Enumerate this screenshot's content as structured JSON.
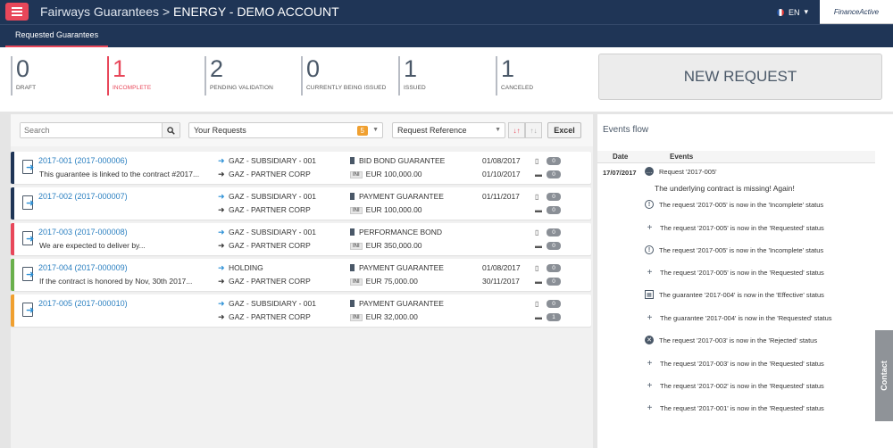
{
  "header": {
    "app_name": "Fairways Guarantees",
    "separator": ">",
    "account": "ENERGY - DEMO ACCOUNT",
    "language": "EN",
    "logo_text": "FinanceActive"
  },
  "tabs": [
    {
      "label": "Requested Guarantees"
    }
  ],
  "stats": [
    {
      "count": "0",
      "label": "DRAFT"
    },
    {
      "count": "1",
      "label": "INCOMPLETE"
    },
    {
      "count": "2",
      "label": "PENDING VALIDATION"
    },
    {
      "count": "0",
      "label": "CURRENTLY BEING ISSUED"
    },
    {
      "count": "1",
      "label": "ISSUED"
    },
    {
      "count": "1",
      "label": "CANCELED"
    }
  ],
  "new_request_label": "NEW REQUEST",
  "toolbar": {
    "search_placeholder": "Search",
    "filter_value": "Your Requests",
    "filter_count": "5",
    "sort_value": "Request Reference",
    "excel_label": "Excel"
  },
  "colors": {
    "navy": "#1f3556",
    "red": "#e8475a",
    "green": "#6ab04c",
    "orange": "#f0a030"
  },
  "requests": [
    {
      "ref": "2017-001 (2017-000006)",
      "desc": "This guarantee is linked to the contract #2017...",
      "entity1": "GAZ - SUBSIDIARY - 001",
      "entity2": "GAZ - PARTNER CORP",
      "type": "BID BOND GUARANTEE",
      "amount": "EUR 100,000.00",
      "date1": "01/08/2017",
      "date2": "01/10/2017",
      "docs": "0",
      "comments": "0",
      "status_color": "#1f3556"
    },
    {
      "ref": "2017-002 (2017-000007)",
      "desc": "",
      "entity1": "GAZ - SUBSIDIARY - 001",
      "entity2": "GAZ - PARTNER CORP",
      "type": "PAYMENT GUARANTEE",
      "amount": "EUR 100,000.00",
      "date1": "01/11/2017",
      "date2": "",
      "docs": "0",
      "comments": "0",
      "status_color": "#1f3556"
    },
    {
      "ref": "2017-003 (2017-000008)",
      "desc": "We are expected to deliver by...",
      "entity1": "GAZ - SUBSIDIARY - 001",
      "entity2": "GAZ - PARTNER CORP",
      "type": "PERFORMANCE BOND",
      "amount": "EUR 350,000.00",
      "date1": "",
      "date2": "",
      "docs": "0",
      "comments": "0",
      "status_color": "#e8475a"
    },
    {
      "ref": "2017-004 (2017-000009)",
      "desc": "If the contract is honored by Nov, 30th 2017...",
      "entity1": "HOLDING",
      "entity2": "GAZ - PARTNER CORP",
      "type": "PAYMENT GUARANTEE",
      "amount": "EUR 75,000.00",
      "date1": "01/08/2017",
      "date2": "30/11/2017",
      "docs": "0",
      "comments": "0",
      "status_color": "#6ab04c"
    },
    {
      "ref": "2017-005 (2017-000010)",
      "desc": "",
      "entity1": "GAZ - SUBSIDIARY - 001",
      "entity2": "GAZ - PARTNER CORP",
      "type": "PAYMENT GUARANTEE",
      "amount": "EUR 32,000.00",
      "date1": "",
      "date2": "",
      "docs": "0",
      "comments": "1",
      "status_color": "#f0a030"
    }
  ],
  "events_flow": {
    "title": "Events flow",
    "col_date": "Date",
    "col_events": "Events",
    "date": "17/07/2017",
    "comment": "The underlying contract is missing! Again!",
    "events": [
      {
        "icon": "comment-icon",
        "text": "Request '2017-005'"
      },
      {
        "icon": "exclamation-icon",
        "text": "The request '2017-005' is now in the 'Incomplete' status"
      },
      {
        "icon": "plus-icon",
        "text": "The request '2017-005' is now in the 'Requested' status"
      },
      {
        "icon": "exclamation-icon",
        "text": "The request '2017-005' is now in the 'Incomplete' status"
      },
      {
        "icon": "plus-icon",
        "text": "The request '2017-005' is now in the 'Requested' status"
      },
      {
        "icon": "calendar-icon",
        "text": "The guarantee '2017-004' is now in the 'Effective' status"
      },
      {
        "icon": "plus-icon",
        "text": "The guarantee '2017-004' is now in the 'Requested' status"
      },
      {
        "icon": "rejected-icon",
        "text": "The request '2017-003' is now in the 'Rejected' status"
      },
      {
        "icon": "plus-icon",
        "text": "The request '2017-003' is now in the 'Requested' status"
      },
      {
        "icon": "plus-icon",
        "text": "The request '2017-002' is now in the 'Requested' status"
      },
      {
        "icon": "plus-icon",
        "text": "The request '2017-001' is now in the 'Requested' status"
      }
    ]
  },
  "contact_label": "Contact"
}
